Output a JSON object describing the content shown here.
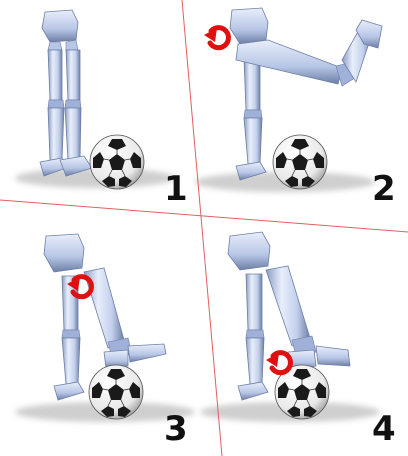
{
  "panels": [
    {
      "number": "1",
      "rotation_arrow": false
    },
    {
      "number": "2",
      "rotation_arrow": true
    },
    {
      "number": "3",
      "rotation_arrow": true
    },
    {
      "number": "4",
      "rotation_arrow": true
    }
  ],
  "colors": {
    "divider": "#e06060",
    "limb_light": "#e4ecfa",
    "limb_mid": "#b7c6e6",
    "limb_dark": "#6d7fa6",
    "ball_white": "#ffffff",
    "ball_black": "#1a1a1a",
    "arrow": "#e01010",
    "shadow": "#cfcfcf",
    "number": "#111111"
  }
}
